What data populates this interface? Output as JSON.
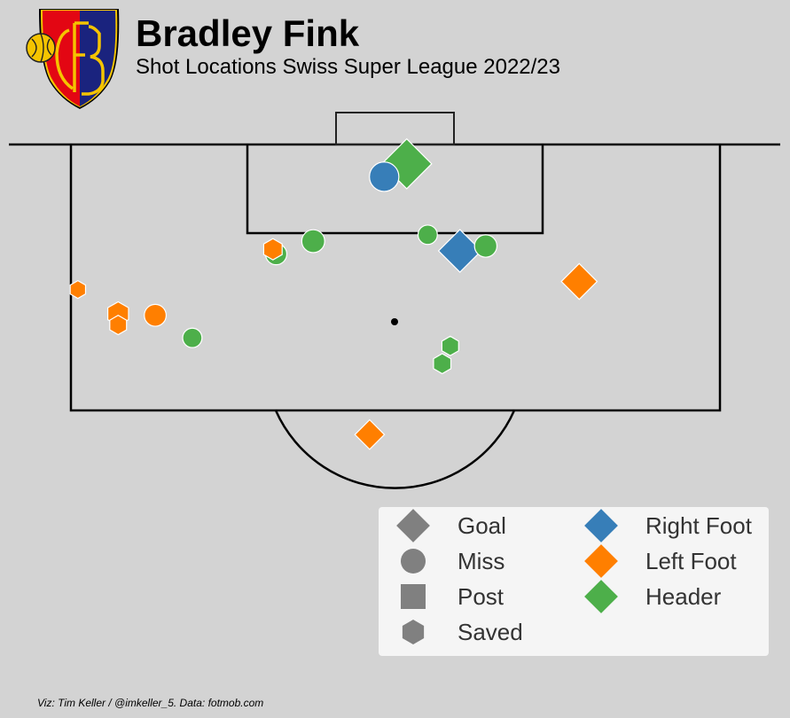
{
  "header": {
    "title": "Bradley Fink",
    "subtitle": "Shot Locations Swiss Super League 2022/23"
  },
  "footer": {
    "credit": "Viz: Tim Keller / @imkeller_5. Data: fotmob.com"
  },
  "crest": {
    "letters": "FCB",
    "colors": {
      "left": "#e30613",
      "right": "#1a237e",
      "rim": "#f5c400"
    }
  },
  "legend": {
    "results": [
      {
        "label": "Goal",
        "shape": "diamond"
      },
      {
        "label": "Miss",
        "shape": "circle"
      },
      {
        "label": "Post",
        "shape": "square"
      },
      {
        "label": "Saved",
        "shape": "hexagon"
      }
    ],
    "bodyparts": [
      {
        "label": "Right Foot",
        "color": "#377eb8"
      },
      {
        "label": "Left Foot",
        "color": "#ff7f00"
      },
      {
        "label": "Header",
        "color": "#4daf4a"
      }
    ],
    "marker_color": "#808080"
  },
  "chart_data": {
    "type": "scatter",
    "title": "Bradley Fink",
    "subtitle": "Shot Locations Swiss Super League 2022/23",
    "coordinate_system": "distance from goal line and from left touchline in metres (half pitch, 105 x 68)",
    "shots": [
      {
        "x": 1.2,
        "y": 34.7,
        "result": "Goal",
        "bodypart": "Header",
        "xg": 0.55
      },
      {
        "x": 2.0,
        "y": 33.3,
        "result": "Miss",
        "bodypart": "Right Foot",
        "xg": 0.28
      },
      {
        "x": 6.6,
        "y": 38.0,
        "result": "Goal",
        "bodypart": "Right Foot",
        "xg": 0.35
      },
      {
        "x": 6.0,
        "y": 28.9,
        "result": "Miss",
        "bodypart": "Header",
        "xg": 0.12
      },
      {
        "x": 5.6,
        "y": 36.0,
        "result": "Miss",
        "bodypart": "Header",
        "xg": 0.06
      },
      {
        "x": 6.3,
        "y": 39.6,
        "result": "Miss",
        "bodypart": "Header",
        "xg": 0.11
      },
      {
        "x": 6.8,
        "y": 26.6,
        "result": "Miss",
        "bodypart": "Header",
        "xg": 0.09
      },
      {
        "x": 6.5,
        "y": 26.4,
        "result": "Saved",
        "bodypart": "Left Foot",
        "xg": 0.09
      },
      {
        "x": 8.5,
        "y": 45.4,
        "result": "Goal",
        "bodypart": "Left Foot",
        "xg": 0.2
      },
      {
        "x": 9.0,
        "y": 14.3,
        "result": "Saved",
        "bodypart": "Left Foot",
        "xg": 0.04
      },
      {
        "x": 10.6,
        "y": 19.1,
        "result": "Miss",
        "bodypart": "Left Foot",
        "xg": 0.1
      },
      {
        "x": 11.2,
        "y": 16.8,
        "result": "Saved",
        "bodypart": "Left Foot",
        "xg": 0.06
      },
      {
        "x": 10.5,
        "y": 16.8,
        "result": "Saved",
        "bodypart": "Left Foot",
        "xg": 0.14
      },
      {
        "x": 12.0,
        "y": 21.4,
        "result": "Miss",
        "bodypart": "Header",
        "xg": 0.06
      },
      {
        "x": 12.5,
        "y": 37.4,
        "result": "Saved",
        "bodypart": "Header",
        "xg": 0.06
      },
      {
        "x": 13.6,
        "y": 36.9,
        "result": "Saved",
        "bodypart": "Header",
        "xg": 0.07
      },
      {
        "x": 18.0,
        "y": 32.4,
        "result": "Goal",
        "bodypart": "Left Foot",
        "xg": 0.1
      }
    ]
  }
}
